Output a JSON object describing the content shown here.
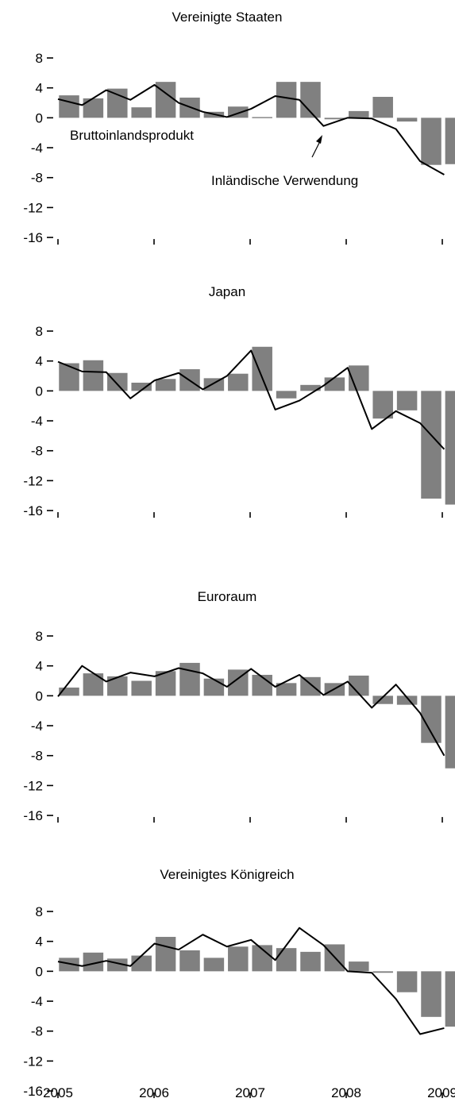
{
  "chart_data": [
    {
      "type": "bar",
      "title": "Vereinigte Staaten",
      "ylim": [
        -16,
        8
      ],
      "yticks": [
        "8",
        "4",
        "0",
        "-4",
        "-8",
        "-12",
        "-16"
      ],
      "x": [
        "2005Q1",
        "2005Q2",
        "2005Q3",
        "2005Q4",
        "2006Q1",
        "2006Q2",
        "2006Q3",
        "2006Q4",
        "2007Q1",
        "2007Q2",
        "2007Q3",
        "2007Q4",
        "2008Q1",
        "2008Q2",
        "2008Q3",
        "2008Q4",
        "2009Q1"
      ],
      "series": [
        {
          "name": "Bruttoinlandsprodukt",
          "kind": "bar",
          "values": [
            3.0,
            2.6,
            3.9,
            1.4,
            4.8,
            2.7,
            0.8,
            1.5,
            0.1,
            4.8,
            4.8,
            -0.2,
            0.9,
            2.8,
            -0.5,
            -6.3,
            -6.2
          ]
        },
        {
          "name": "Inländische Verwendung",
          "kind": "line",
          "values": [
            2.5,
            1.7,
            3.7,
            2.4,
            4.4,
            2.0,
            0.8,
            0.1,
            1.2,
            2.9,
            2.4,
            -1.1,
            0.0,
            -0.1,
            -1.5,
            -5.8,
            -7.6
          ]
        }
      ],
      "annotations": [
        "Bruttoinlandsprodukt",
        "Inländische Verwendung"
      ]
    },
    {
      "type": "bar",
      "title": "Japan",
      "ylim": [
        -16,
        8
      ],
      "yticks": [
        "8",
        "4",
        "0",
        "-4",
        "-8",
        "-12",
        "-16"
      ],
      "x": [
        "2005Q1",
        "2005Q2",
        "2005Q3",
        "2005Q4",
        "2006Q1",
        "2006Q2",
        "2006Q3",
        "2006Q4",
        "2007Q1",
        "2007Q2",
        "2007Q3",
        "2007Q4",
        "2008Q1",
        "2008Q2",
        "2008Q3",
        "2008Q4",
        "2009Q1"
      ],
      "series": [
        {
          "name": "Bruttoinlandsprodukt",
          "kind": "bar",
          "values": [
            3.7,
            4.1,
            2.4,
            1.1,
            1.6,
            2.9,
            1.7,
            2.3,
            5.9,
            -1.0,
            0.8,
            1.8,
            3.4,
            -3.7,
            -2.6,
            -14.4,
            -15.2
          ]
        },
        {
          "name": "Inländische Verwendung",
          "kind": "line",
          "values": [
            3.9,
            2.6,
            2.5,
            -1.0,
            1.4,
            2.4,
            0.2,
            2.0,
            5.4,
            -2.5,
            -1.3,
            0.7,
            3.1,
            -5.1,
            -2.7,
            -4.3,
            -7.8
          ]
        }
      ]
    },
    {
      "type": "bar",
      "title": "Euroraum",
      "ylim": [
        -16,
        8
      ],
      "yticks": [
        "8",
        "4",
        "0",
        "-4",
        "-8",
        "-12",
        "-16"
      ],
      "x": [
        "2005Q1",
        "2005Q2",
        "2005Q3",
        "2005Q4",
        "2006Q1",
        "2006Q2",
        "2006Q3",
        "2006Q4",
        "2007Q1",
        "2007Q2",
        "2007Q3",
        "2007Q4",
        "2008Q1",
        "2008Q2",
        "2008Q3",
        "2008Q4",
        "2009Q1"
      ],
      "series": [
        {
          "name": "Bruttoinlandsprodukt",
          "kind": "bar",
          "values": [
            1.1,
            3.0,
            2.6,
            2.0,
            3.3,
            4.4,
            2.3,
            3.5,
            2.8,
            1.7,
            2.5,
            1.7,
            2.7,
            -1.1,
            -1.2,
            -6.3,
            -9.7
          ]
        },
        {
          "name": "Inländische Verwendung",
          "kind": "line",
          "values": [
            -0.1,
            4.0,
            1.9,
            3.1,
            2.6,
            3.7,
            3.0,
            1.2,
            3.6,
            1.2,
            2.8,
            0.1,
            1.9,
            -1.6,
            1.5,
            -2.3,
            -8.0
          ]
        }
      ]
    },
    {
      "type": "bar",
      "title": "Vereinigtes Königreich",
      "ylim": [
        -16,
        8
      ],
      "yticks": [
        "8",
        "4",
        "0",
        "-4",
        "-8",
        "-12",
        "-16"
      ],
      "xtick_labels": [
        "2005",
        "2006",
        "2007",
        "2008",
        "2009"
      ],
      "x": [
        "2005Q1",
        "2005Q2",
        "2005Q3",
        "2005Q4",
        "2006Q1",
        "2006Q2",
        "2006Q3",
        "2006Q4",
        "2007Q1",
        "2007Q2",
        "2007Q3",
        "2007Q4",
        "2008Q1",
        "2008Q2",
        "2008Q3",
        "2008Q4",
        "2009Q1"
      ],
      "series": [
        {
          "name": "Bruttoinlandsprodukt",
          "kind": "bar",
          "values": [
            1.8,
            2.5,
            1.7,
            2.1,
            4.6,
            2.8,
            1.8,
            3.3,
            3.5,
            3.1,
            2.6,
            3.6,
            1.3,
            -0.2,
            -2.8,
            -6.1,
            -7.4
          ]
        },
        {
          "name": "Inländische Verwendung",
          "kind": "line",
          "values": [
            1.3,
            0.7,
            1.4,
            0.7,
            3.7,
            2.9,
            4.9,
            3.3,
            4.2,
            1.5,
            5.8,
            3.5,
            0.0,
            -0.2,
            -3.7,
            -8.4,
            -7.6
          ]
        }
      ]
    }
  ],
  "colors": {
    "bar": "#808080",
    "line": "#000000"
  }
}
